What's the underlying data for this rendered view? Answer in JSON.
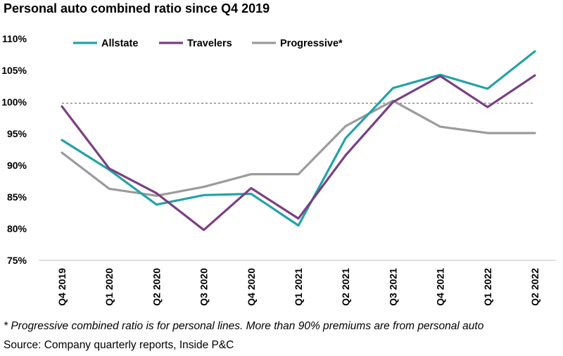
{
  "title": "Personal auto combined ratio since Q4 2019",
  "footnote": "* Progressive combined ratio is for personal lines. More than 90% premiums are from personal auto",
  "source": "Source: Company quarterly reports, Inside P&C",
  "chart_data": {
    "type": "line",
    "title": "Personal auto combined ratio since Q4 2019",
    "xlabel": "",
    "ylabel": "",
    "categories": [
      "Q4 2019",
      "Q1 2020",
      "Q2 2020",
      "Q3 2020",
      "Q4 2020",
      "Q1 2021",
      "Q2 2021",
      "Q3 2021",
      "Q4 2021",
      "Q1 2022",
      "Q2 2022"
    ],
    "ylim": [
      75,
      110
    ],
    "yticks": [
      75,
      80,
      85,
      90,
      95,
      100,
      105,
      110
    ],
    "ytick_labels": [
      "75%",
      "80%",
      "85%",
      "90%",
      "95%",
      "100%",
      "105%",
      "110%"
    ],
    "reference_line": 99.8,
    "legend_position": "top",
    "series": [
      {
        "name": "Allstate",
        "color": "#23A3A6",
        "values": [
          94.0,
          89.3,
          83.8,
          85.3,
          85.5,
          80.5,
          94.3,
          102.2,
          104.3,
          102.1,
          108.0
        ]
      },
      {
        "name": "Travelers",
        "color": "#7B3F84",
        "values": [
          99.3,
          89.5,
          85.6,
          79.8,
          86.4,
          81.6,
          91.6,
          100.0,
          104.1,
          99.2,
          104.2
        ]
      },
      {
        "name": "Progressive*",
        "color": "#9B9B9B",
        "values": [
          92.0,
          86.3,
          85.2,
          86.6,
          88.6,
          88.6,
          96.2,
          100.2,
          96.1,
          95.1,
          95.1
        ]
      }
    ]
  }
}
